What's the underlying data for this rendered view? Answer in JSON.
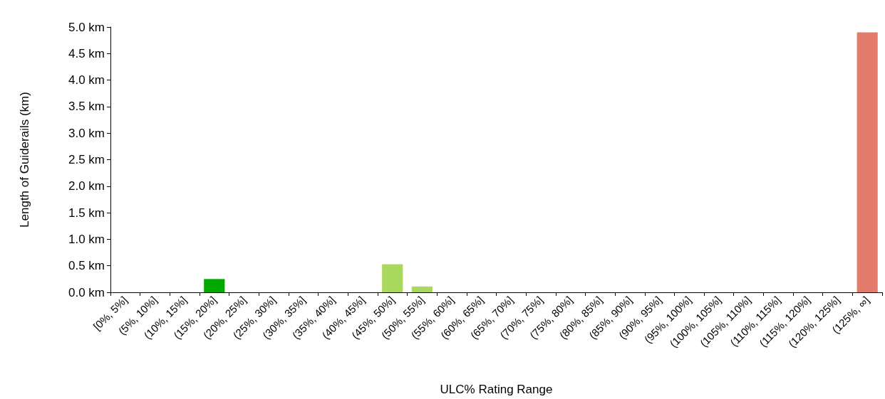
{
  "chart_data": {
    "type": "bar",
    "xlabel": "ULC% Rating Range",
    "ylabel": "Length of Guiderails (km)",
    "categories": [
      "[0%, 5%]",
      "(5%, 10%]",
      "(10%, 15%]",
      "(15%, 20%]",
      "(20%, 25%]",
      "(25%, 30%]",
      "(30%, 35%]",
      "(35%, 40%]",
      "(40%, 45%]",
      "(45%, 50%]",
      "(50%, 55%]",
      "(55%, 60%]",
      "(60%, 65%]",
      "(65%, 70%]",
      "(70%, 75%]",
      "(75%, 80%]",
      "(80%, 85%]",
      "(85%, 90%]",
      "(90%, 95%]",
      "(95%, 100%]",
      "(100%, 105%]",
      "(105%, 110%]",
      "(110%, 115%]",
      "(115%, 120%]",
      "(120%, 125%]",
      "(125%, ∞]"
    ],
    "values": [
      0,
      0,
      0,
      0.25,
      0,
      0,
      0,
      0,
      0,
      0.53,
      0.11,
      0,
      0,
      0,
      0,
      0,
      0,
      0,
      0,
      0,
      0,
      0,
      0,
      0,
      0,
      4.9
    ],
    "colors": [
      "#00a800",
      "#00a800",
      "#00a800",
      "#00a800",
      "#aad85e",
      "#aad85e",
      "#aad85e",
      "#aad85e",
      "#aad85e",
      "#aad85e",
      "#aad85e",
      "#aad85e",
      "#aad85e",
      "#aad85e",
      "#aad85e",
      "#aad85e",
      "#aad85e",
      "#aad85e",
      "#aad85e",
      "#aad85e",
      "#aad85e",
      "#aad85e",
      "#aad85e",
      "#aad85e",
      "#aad85e",
      "#e27b6b"
    ],
    "ylim": [
      0,
      5
    ],
    "yticks": [
      {
        "value": 0,
        "label": "0.0 km"
      },
      {
        "value": 0.5,
        "label": "0.5 km"
      },
      {
        "value": 1,
        "label": "1.0 km"
      },
      {
        "value": 1.5,
        "label": "1.5 km"
      },
      {
        "value": 2,
        "label": "2.0 km"
      },
      {
        "value": 2.5,
        "label": "2.5 km"
      },
      {
        "value": 3,
        "label": "3.0 km"
      },
      {
        "value": 3.5,
        "label": "3.5 km"
      },
      {
        "value": 4,
        "label": "4.0 km"
      },
      {
        "value": 4.5,
        "label": "4.5 km"
      },
      {
        "value": 5,
        "label": "5.0 km"
      }
    ],
    "grid": false
  }
}
